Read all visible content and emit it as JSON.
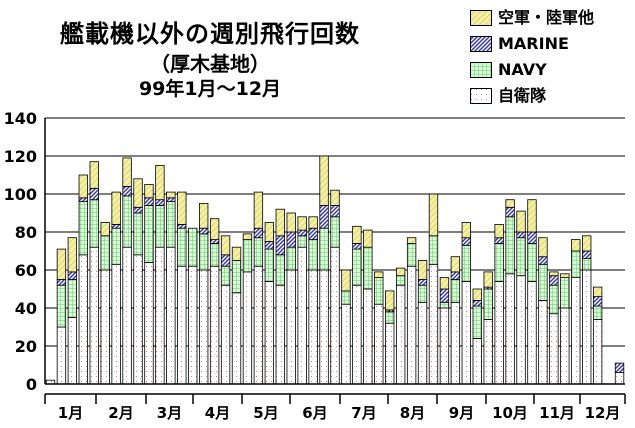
{
  "title": {
    "line1": "艦載機以外の週別飛行回数",
    "line2": "（厚木基地）",
    "line3": "99年1月〜12月"
  },
  "colors": {
    "other": "#f5f0a0",
    "marine": "#3b3bb0",
    "navy": "#66cc66",
    "navy_bg": "#d8f8d8",
    "base": "#d06070",
    "base_bg": "#ffffff"
  },
  "chart_data": {
    "type": "bar",
    "stacked": true,
    "title": "艦載機以外の週別飛行回数",
    "subtitle": "（厚木基地） 99年1月〜12月",
    "ylim": [
      0,
      140
    ],
    "yticks": [
      "0",
      "20",
      "40",
      "60",
      "80",
      "100",
      "120",
      "140"
    ],
    "grid": true,
    "legend_position": "top-right",
    "month_labels": [
      "1月",
      "2月",
      "3月",
      "4月",
      "5月",
      "6月",
      "7月",
      "8月",
      "9月",
      "10月",
      "11月",
      "12月"
    ],
    "legend": [
      "空軍・陸軍他",
      "MARINE",
      "NAVY",
      "自衛隊"
    ],
    "weeks": 53,
    "series": [
      {
        "name": "自衛隊",
        "values": [
          2,
          30,
          35,
          68,
          72,
          60,
          63,
          72,
          68,
          64,
          72,
          72,
          62,
          62,
          60,
          62,
          52,
          48,
          59,
          62,
          54,
          52,
          60,
          72,
          60,
          60,
          72,
          42,
          52,
          50,
          42,
          32,
          52,
          62,
          43,
          63,
          40,
          43,
          54,
          24,
          34,
          54,
          58,
          57,
          54,
          44,
          37,
          40,
          56,
          60,
          34,
          0,
          6
        ]
      },
      {
        "name": "NAVY",
        "values": [
          0,
          22,
          20,
          28,
          25,
          18,
          19,
          27,
          22,
          30,
          22,
          24,
          20,
          20,
          19,
          12,
          10,
          17,
          17,
          15,
          17,
          16,
          12,
          6,
          16,
          22,
          16,
          7,
          19,
          22,
          14,
          6,
          5,
          12,
          9,
          15,
          3,
          12,
          19,
          17,
          16,
          20,
          30,
          20,
          20,
          19,
          15,
          16,
          14,
          6,
          7,
          0,
          0
        ]
      },
      {
        "name": "MARINE",
        "values": [
          0,
          3,
          4,
          2,
          6,
          0,
          2,
          5,
          3,
          4,
          3,
          2,
          2,
          0,
          3,
          2,
          6,
          0,
          0,
          5,
          4,
          10,
          8,
          3,
          6,
          12,
          6,
          0,
          3,
          0,
          0,
          1,
          0,
          0,
          3,
          0,
          7,
          4,
          4,
          3,
          1,
          3,
          5,
          3,
          6,
          4,
          5,
          0,
          0,
          4,
          5,
          0,
          5
        ]
      },
      {
        "name": "空軍・陸軍他",
        "values": [
          0,
          16,
          18,
          12,
          14,
          7,
          17,
          15,
          15,
          7,
          18,
          3,
          17,
          0,
          13,
          11,
          10,
          7,
          3,
          19,
          10,
          14,
          10,
          7,
          6,
          26,
          8,
          11,
          9,
          9,
          3,
          10,
          4,
          3,
          10,
          22,
          6,
          8,
          8,
          6,
          8,
          7,
          4,
          11,
          17,
          10,
          2,
          2,
          6,
          8,
          5,
          0,
          0
        ]
      }
    ]
  }
}
